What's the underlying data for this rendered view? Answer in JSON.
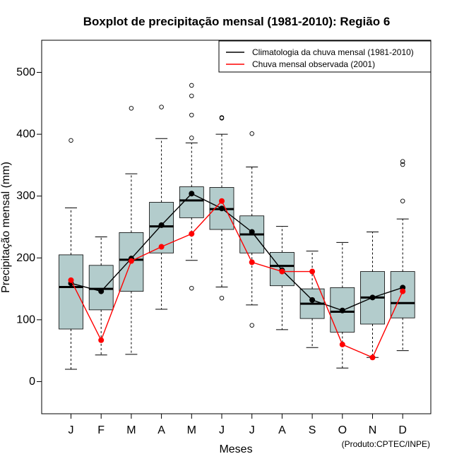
{
  "chart_data": {
    "type": "boxplot",
    "title": "Boxplot de precipitação mensal (1981-2010): Região 6",
    "xlabel": "Meses",
    "ylabel": "Precipitação mensal (mm)",
    "credit": "(Produto:CPTEC/INPE)",
    "ylim": [
      -52,
      552
    ],
    "yticks": [
      0,
      100,
      200,
      300,
      400,
      500
    ],
    "categories": [
      "J",
      "F",
      "M",
      "A",
      "M",
      "J",
      "J",
      "A",
      "S",
      "O",
      "N",
      "D"
    ],
    "box_fill": "#b3cccc",
    "boxes": [
      {
        "min": 20,
        "q1": 85,
        "median": 153,
        "q3": 205,
        "max": 281,
        "outliers": [
          390
        ]
      },
      {
        "min": 43,
        "q1": 116,
        "median": 150,
        "q3": 188,
        "max": 234,
        "outliers": []
      },
      {
        "min": 44,
        "q1": 146,
        "median": 197,
        "q3": 241,
        "max": 336,
        "outliers": [
          442
        ]
      },
      {
        "min": 117,
        "q1": 208,
        "median": 251,
        "q3": 290,
        "max": 393,
        "outliers": [
          444
        ]
      },
      {
        "min": 196,
        "q1": 265,
        "median": 293,
        "q3": 315,
        "max": 386,
        "outliers": [
          151,
          394,
          431,
          462,
          479
        ]
      },
      {
        "min": 153,
        "q1": 246,
        "median": 279,
        "q3": 314,
        "max": 400,
        "outliers": [
          135,
          426,
          427
        ]
      },
      {
        "min": 124,
        "q1": 208,
        "median": 238,
        "q3": 268,
        "max": 347,
        "outliers": [
          91,
          401
        ]
      },
      {
        "min": 84,
        "q1": 155,
        "median": 187,
        "q3": 209,
        "max": 251,
        "outliers": []
      },
      {
        "min": 55,
        "q1": 102,
        "median": 126,
        "q3": 150,
        "max": 211,
        "outliers": []
      },
      {
        "min": 22,
        "q1": 80,
        "median": 113,
        "q3": 152,
        "max": 225,
        "outliers": []
      },
      {
        "min": 39,
        "q1": 93,
        "median": 136,
        "q3": 178,
        "max": 242,
        "outliers": []
      },
      {
        "min": 50,
        "q1": 103,
        "median": 127,
        "q3": 178,
        "max": 263,
        "outliers": [
          292,
          351,
          356
        ]
      }
    ],
    "series": [
      {
        "name": "Climatologia da chuva mensal (1981-2010)",
        "color": "#000000",
        "values": [
          159,
          146,
          199,
          253,
          304,
          280,
          242,
          180,
          132,
          115,
          136,
          152
        ]
      },
      {
        "name": "Chuva mensal observada (2001)",
        "color": "#ff0000",
        "values": [
          164,
          67,
          195,
          218,
          239,
          292,
          193,
          178,
          178,
          60,
          39,
          146
        ]
      }
    ],
    "legend_position": "top-right"
  }
}
